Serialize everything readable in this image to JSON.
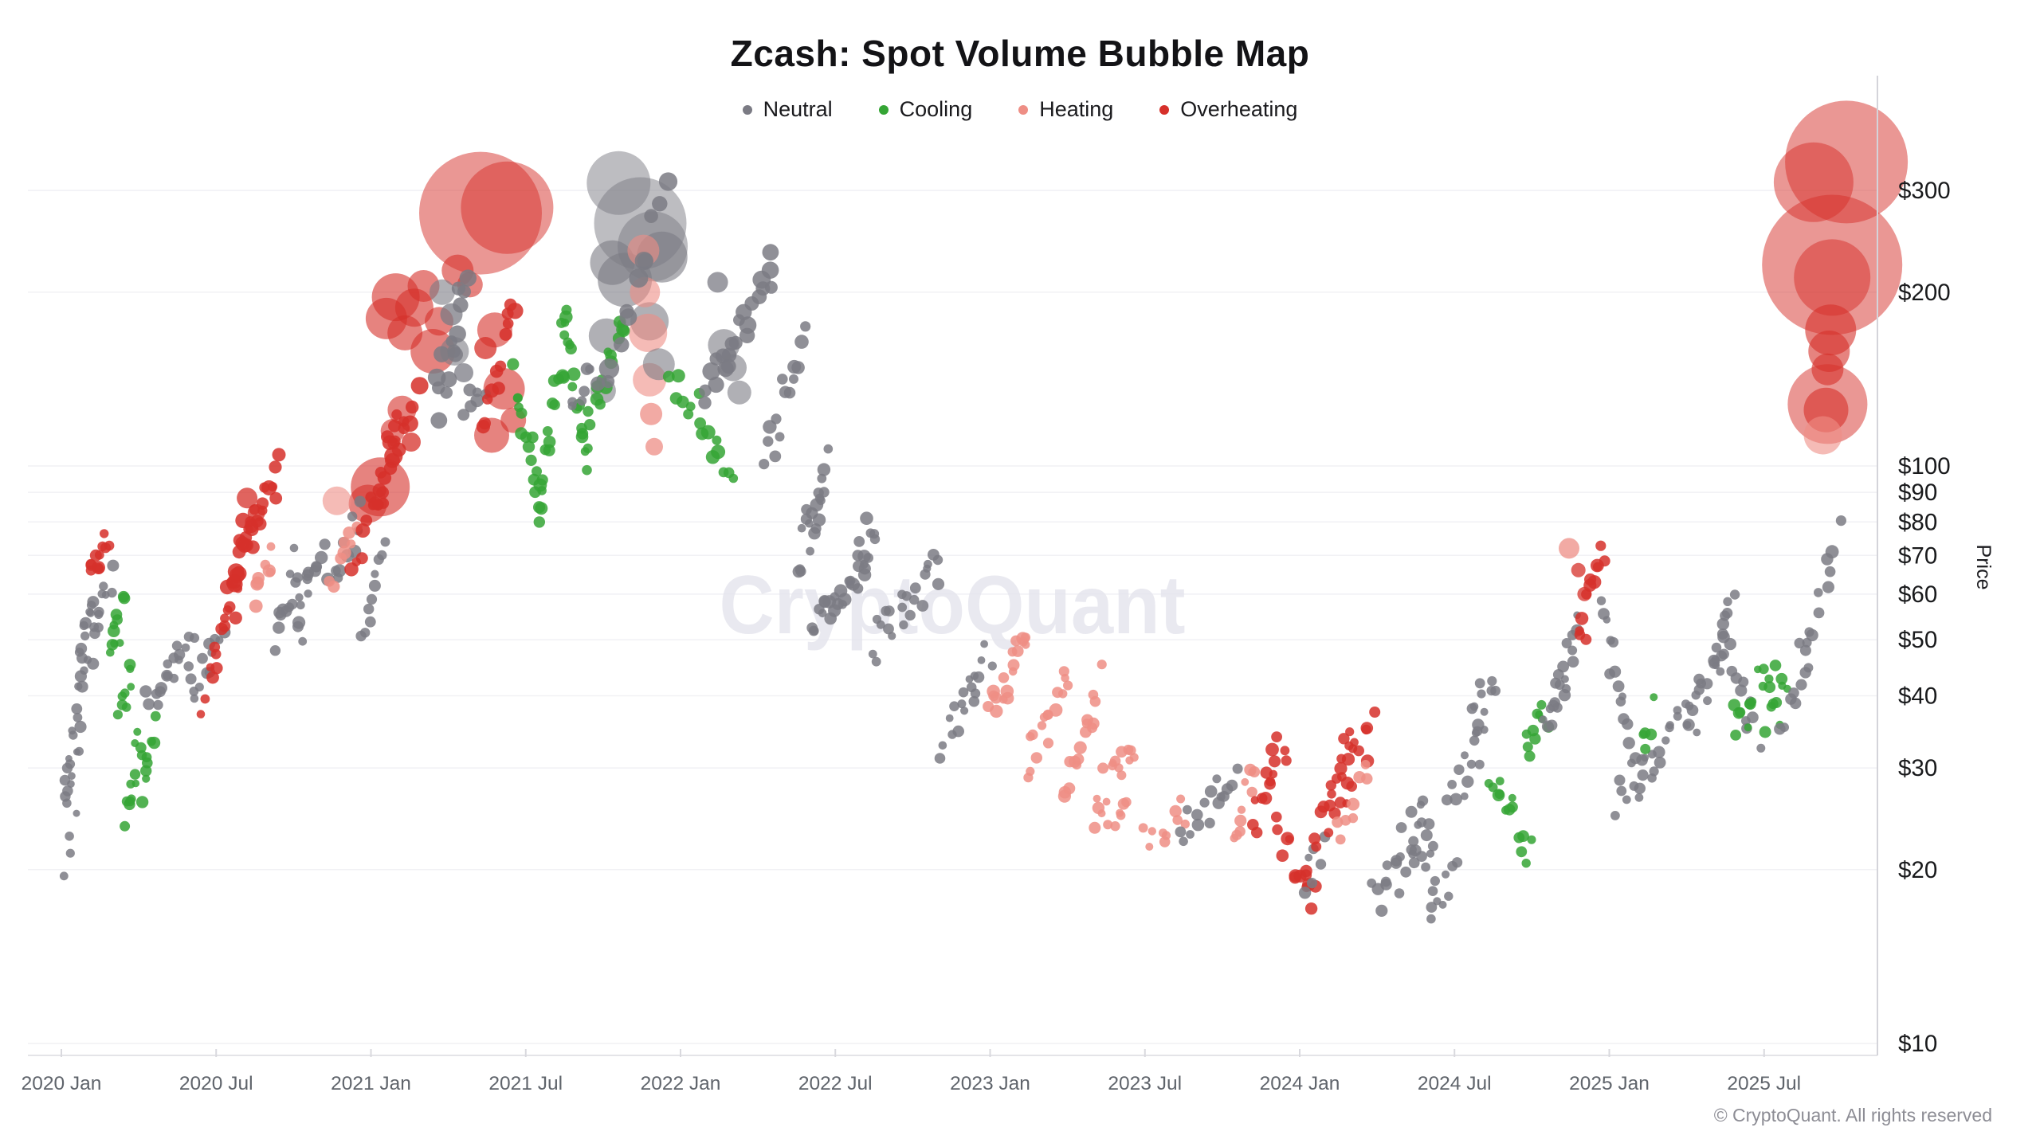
{
  "title": "Zcash: Spot Volume Bubble Map",
  "watermark": "CryptoQuant",
  "copyright": "© CryptoQuant. All rights reserved",
  "y_axis": {
    "label": "Price"
  },
  "legend": [
    {
      "label": "Neutral",
      "color": "#7b7b84"
    },
    {
      "label": "Cooling",
      "color": "#35a535"
    },
    {
      "label": "Heating",
      "color": "#ee8e85"
    },
    {
      "label": "Overheating",
      "color": "#d6302a"
    }
  ],
  "chart_data": {
    "type": "scatter",
    "subtype": "bubble",
    "title": "Zcash: Spot Volume Bubble Map",
    "xlabel": "",
    "ylabel": "Price",
    "price_scale": "log",
    "bubble_size": "spot volume",
    "x_ticks": [
      {
        "t": 0.0,
        "label": "2020 Jan"
      },
      {
        "t": 0.5,
        "label": "2020 Jul"
      },
      {
        "t": 1.0,
        "label": "2021 Jan"
      },
      {
        "t": 1.5,
        "label": "2021 Jul"
      },
      {
        "t": 2.0,
        "label": "2022 Jan"
      },
      {
        "t": 2.5,
        "label": "2022 Jul"
      },
      {
        "t": 3.0,
        "label": "2023 Jan"
      },
      {
        "t": 3.5,
        "label": "2023 Jul"
      },
      {
        "t": 4.0,
        "label": "2024 Jan"
      },
      {
        "t": 4.5,
        "label": "2024 Jul"
      },
      {
        "t": 5.0,
        "label": "2025 Jan"
      },
      {
        "t": 5.5,
        "label": "2025 Jul"
      }
    ],
    "y_ticks": [
      {
        "p": 10,
        "label": "$10"
      },
      {
        "p": 20,
        "label": "$20"
      },
      {
        "p": 30,
        "label": "$30"
      },
      {
        "p": 40,
        "label": "$40"
      },
      {
        "p": 50,
        "label": "$50"
      },
      {
        "p": 60,
        "label": "$60"
      },
      {
        "p": 70,
        "label": "$70"
      },
      {
        "p": 80,
        "label": "$80"
      },
      {
        "p": 90,
        "label": "$90"
      },
      {
        "p": 100,
        "label": "$100"
      },
      {
        "p": 200,
        "label": "$200"
      },
      {
        "p": 300,
        "label": "$300"
      }
    ],
    "categories": {
      "N": "Neutral",
      "G": "Cooling",
      "H": "Heating",
      "O": "Overheating"
    },
    "category_colors": {
      "N": "#7b7b84",
      "G": "#35a535",
      "H": "#ee8e85",
      "O": "#d6302a"
    },
    "time_unit": "years since 2020 Jan",
    "clusters_format": [
      "t_start",
      "t_end",
      "price_start_usd",
      "price_end_usd",
      "n_points",
      "dot_radius_px",
      "category"
    ],
    "clusters": [
      [
        0.01,
        0.05,
        27,
        33,
        12,
        5.5,
        "N"
      ],
      [
        0.02,
        0.04,
        21,
        25,
        4,
        5,
        "N"
      ],
      [
        0.04,
        0.09,
        36,
        45,
        10,
        6,
        "N"
      ],
      [
        0.06,
        0.11,
        47,
        57,
        12,
        6,
        "N"
      ],
      [
        0.1,
        0.15,
        63,
        74,
        12,
        6.5,
        "O"
      ],
      [
        0.11,
        0.17,
        54,
        65,
        8,
        6,
        "N"
      ],
      [
        0.15,
        0.2,
        48,
        56,
        10,
        6,
        "G"
      ],
      [
        0.18,
        0.23,
        38,
        44,
        8,
        6,
        "G"
      ],
      [
        0.21,
        0.26,
        24,
        34,
        12,
        6,
        "G"
      ],
      [
        0.26,
        0.31,
        28,
        35,
        8,
        6,
        "G"
      ],
      [
        0.28,
        0.42,
        38,
        49,
        18,
        6,
        "N"
      ],
      [
        0.42,
        0.52,
        42,
        50,
        12,
        6,
        "N"
      ],
      [
        0.46,
        0.57,
        40,
        59,
        14,
        6.5,
        "O"
      ],
      [
        0.54,
        0.63,
        62,
        84,
        14,
        8,
        "O"
      ],
      [
        0.57,
        0.7,
        70,
        99,
        16,
        7.5,
        "O"
      ],
      [
        0.62,
        0.68,
        58,
        70,
        8,
        6.5,
        "H"
      ],
      [
        0.7,
        0.76,
        50,
        67,
        12,
        6,
        "N"
      ],
      [
        0.76,
        0.84,
        51,
        74,
        14,
        6.5,
        "N"
      ],
      [
        0.865,
        0.97,
        62,
        81,
        10,
        6.5,
        "N"
      ],
      [
        0.87,
        0.95,
        63,
        80,
        8,
        7,
        "H"
      ],
      [
        0.98,
        1.04,
        54,
        69,
        10,
        6,
        "N"
      ],
      [
        0.94,
        1.04,
        70,
        90,
        10,
        7,
        "O"
      ],
      [
        1.02,
        1.1,
        85,
        118,
        12,
        8,
        "O"
      ],
      [
        1.05,
        1.15,
        106,
        128,
        8,
        9,
        "O"
      ],
      [
        1.21,
        1.31,
        125,
        205,
        14,
        9,
        "N"
      ],
      [
        1.31,
        1.36,
        120,
        140,
        6,
        7,
        "N"
      ],
      [
        1.36,
        1.46,
        115,
        190,
        12,
        8,
        "O"
      ],
      [
        1.47,
        1.55,
        140,
        86,
        16,
        6.5,
        "G"
      ],
      [
        1.55,
        1.63,
        86,
        176,
        16,
        6.5,
        "G"
      ],
      [
        1.63,
        1.7,
        176,
        100,
        14,
        6.5,
        "G"
      ],
      [
        1.65,
        1.71,
        124,
        140,
        6,
        6.5,
        "N"
      ],
      [
        1.7,
        1.82,
        115,
        180,
        16,
        6.5,
        "G"
      ],
      [
        1.74,
        1.95,
        135,
        290,
        12,
        10,
        "N"
      ],
      [
        1.97,
        2.17,
        150,
        96,
        16,
        7,
        "G"
      ],
      [
        2.08,
        2.3,
        130,
        220,
        22,
        9,
        "N"
      ],
      [
        2.27,
        2.4,
        100,
        168,
        14,
        7,
        "N"
      ],
      [
        2.4,
        2.46,
        84,
        95,
        8,
        6.5,
        "N"
      ],
      [
        2.38,
        2.48,
        64,
        100,
        12,
        6.5,
        "N"
      ],
      [
        2.42,
        2.6,
        53,
        69,
        24,
        6.5,
        "N"
      ],
      [
        2.57,
        2.63,
        71,
        80,
        8,
        6.5,
        "N"
      ],
      [
        2.62,
        2.84,
        49,
        67,
        22,
        6,
        "N"
      ],
      [
        2.84,
        3.0,
        33,
        47,
        18,
        6,
        "N"
      ],
      [
        3.0,
        3.12,
        38,
        50,
        18,
        6.5,
        "H"
      ],
      [
        3.12,
        3.25,
        31,
        42,
        16,
        6.5,
        "H"
      ],
      [
        3.24,
        3.35,
        27.5,
        42,
        16,
        6.5,
        "H"
      ],
      [
        3.33,
        3.47,
        25.5,
        33,
        16,
        6,
        "H"
      ],
      [
        3.39,
        3.44,
        22.5,
        25.5,
        6,
        6,
        "H"
      ],
      [
        3.5,
        3.64,
        23,
        25.5,
        10,
        6,
        "H"
      ],
      [
        3.62,
        3.79,
        23,
        30,
        16,
        6,
        "N"
      ],
      [
        3.79,
        3.86,
        24,
        30,
        10,
        6,
        "H"
      ],
      [
        3.85,
        3.95,
        25,
        33.5,
        14,
        6.5,
        "O"
      ],
      [
        3.93,
        4.06,
        23.5,
        17.5,
        14,
        6.5,
        "O"
      ],
      [
        4.02,
        4.08,
        19,
        21.5,
        6,
        6,
        "N"
      ],
      [
        4.05,
        4.18,
        22,
        35,
        16,
        6.5,
        "O"
      ],
      [
        4.12,
        4.24,
        26.5,
        35,
        12,
        6.5,
        "O"
      ],
      [
        4.13,
        4.22,
        23,
        30,
        8,
        6.5,
        "H"
      ],
      [
        4.24,
        4.43,
        18,
        22.5,
        20,
        6,
        "N"
      ],
      [
        4.34,
        4.42,
        23,
        26,
        8,
        6,
        "N"
      ],
      [
        4.42,
        4.5,
        16.8,
        19.8,
        10,
        6,
        "N"
      ],
      [
        4.48,
        4.59,
        26,
        34,
        12,
        6,
        "N"
      ],
      [
        4.55,
        4.63,
        36,
        43,
        10,
        6,
        "N"
      ],
      [
        4.62,
        4.74,
        30,
        21.5,
        14,
        6,
        "G"
      ],
      [
        4.73,
        4.8,
        32,
        38,
        10,
        6,
        "G"
      ],
      [
        4.79,
        4.87,
        36,
        43,
        8,
        6,
        "N"
      ],
      [
        4.82,
        4.9,
        37,
        57,
        12,
        6,
        "N"
      ],
      [
        4.9,
        4.98,
        48,
        74,
        12,
        7,
        "O"
      ],
      [
        4.97,
        5.1,
        57,
        29,
        16,
        6,
        "N"
      ],
      [
        5.03,
        5.3,
        26.5,
        40,
        26,
        6,
        "N"
      ],
      [
        5.1,
        5.15,
        34,
        37,
        5,
        6,
        "G"
      ],
      [
        5.28,
        5.38,
        37,
        50,
        10,
        6,
        "N"
      ],
      [
        5.33,
        5.4,
        47,
        56,
        10,
        6,
        "N"
      ],
      [
        5.39,
        5.48,
        47,
        34,
        10,
        6,
        "N"
      ],
      [
        5.4,
        5.53,
        35,
        47,
        14,
        6,
        "G"
      ],
      [
        5.51,
        5.58,
        35,
        42,
        8,
        6,
        "G"
      ],
      [
        5.55,
        5.64,
        35,
        45,
        8,
        6,
        "N"
      ],
      [
        5.62,
        5.71,
        47,
        62,
        9,
        6,
        "N"
      ],
      [
        5.71,
        5.74,
        68,
        75,
        3,
        8,
        "N"
      ]
    ],
    "bubbles_format": [
      "t",
      "price_usd",
      "radius_px",
      "category"
    ],
    "bubbles": [
      [
        0.6,
        88,
        13,
        "O"
      ],
      [
        0.63,
        83,
        11,
        "O"
      ],
      [
        0.89,
        87,
        18,
        "H"
      ],
      [
        0.99,
        86,
        24,
        "O"
      ],
      [
        1.03,
        92,
        37,
        "O"
      ],
      [
        1.07,
        115,
        15,
        "O"
      ],
      [
        1.1,
        125,
        18,
        "O"
      ],
      [
        1.13,
        110,
        12,
        "O"
      ],
      [
        1.05,
        180,
        26,
        "O"
      ],
      [
        1.08,
        196,
        30,
        "O"
      ],
      [
        1.11,
        170,
        22,
        "O"
      ],
      [
        1.14,
        188,
        24,
        "O"
      ],
      [
        1.17,
        205,
        20,
        "O"
      ],
      [
        1.2,
        158,
        28,
        "O"
      ],
      [
        1.22,
        178,
        18,
        "O"
      ],
      [
        1.23,
        200,
        16,
        "N"
      ],
      [
        1.26,
        183,
        14,
        "N"
      ],
      [
        1.27,
        158,
        18,
        "N"
      ],
      [
        1.3,
        145,
        12,
        "N"
      ],
      [
        1.28,
        218,
        20,
        "O"
      ],
      [
        1.32,
        206,
        16,
        "O"
      ],
      [
        1.354,
        274,
        77,
        "O"
      ],
      [
        1.44,
        280,
        58,
        "O"
      ],
      [
        1.37,
        160,
        14,
        "O"
      ],
      [
        1.4,
        172,
        22,
        "O"
      ],
      [
        1.43,
        136,
        26,
        "O"
      ],
      [
        1.46,
        120,
        16,
        "O"
      ],
      [
        1.39,
        113,
        22,
        "O"
      ],
      [
        1.8,
        309,
        40,
        "N"
      ],
      [
        1.87,
        263,
        58,
        "N"
      ],
      [
        1.82,
        210,
        34,
        "N"
      ],
      [
        1.91,
        240,
        44,
        "N"
      ],
      [
        1.94,
        230,
        32,
        "N"
      ],
      [
        1.78,
        225,
        28,
        "N"
      ],
      [
        1.76,
        168,
        22,
        "N"
      ],
      [
        1.75,
        135,
        16,
        "N"
      ],
      [
        1.9,
        178,
        24,
        "N"
      ],
      [
        1.93,
        150,
        20,
        "N"
      ],
      [
        1.88,
        236,
        20,
        "H"
      ],
      [
        1.885,
        200,
        19,
        "H"
      ],
      [
        1.895,
        170,
        24,
        "H"
      ],
      [
        1.9,
        141,
        21,
        "H"
      ],
      [
        1.905,
        123,
        14,
        "H"
      ],
      [
        1.915,
        108,
        11,
        "H"
      ],
      [
        2.12,
        208,
        13,
        "N"
      ],
      [
        2.14,
        162,
        20,
        "N"
      ],
      [
        2.17,
        148,
        17,
        "N"
      ],
      [
        2.19,
        134,
        15,
        "N"
      ],
      [
        4.87,
        72,
        13,
        "H"
      ],
      [
        4.9,
        66,
        9,
        "O"
      ],
      [
        4.92,
        60,
        9,
        "O"
      ],
      [
        5.766,
        336,
        77,
        "O"
      ],
      [
        5.66,
        310,
        50,
        "O"
      ],
      [
        5.72,
        223,
        88,
        "O"
      ],
      [
        5.72,
        212,
        48,
        "O"
      ],
      [
        5.715,
        172,
        32,
        "O"
      ],
      [
        5.71,
        158,
        26,
        "O"
      ],
      [
        5.705,
        147,
        20,
        "O"
      ],
      [
        5.705,
        128,
        50,
        "O"
      ],
      [
        5.7,
        125,
        28,
        "O"
      ],
      [
        5.69,
        113,
        24,
        "H"
      ]
    ]
  }
}
